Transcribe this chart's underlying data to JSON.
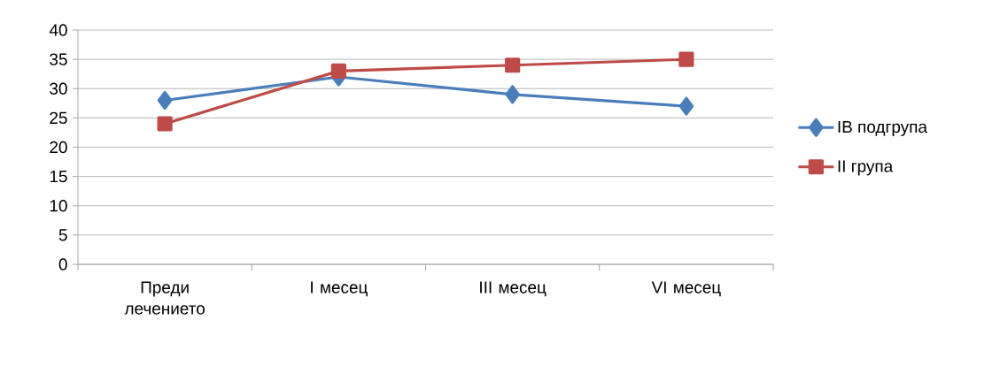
{
  "chart_data": {
    "type": "line",
    "categories": [
      "Преди лечението",
      "I месец",
      "III месец",
      "VI месец"
    ],
    "series": [
      {
        "name": "IB подгрупа",
        "color": "#4a7ebb",
        "marker": "diamond",
        "values": [
          28,
          32,
          29,
          27
        ]
      },
      {
        "name": "II група",
        "color": "#be4b48",
        "marker": "square",
        "values": [
          24,
          33,
          34,
          35
        ]
      }
    ],
    "ylim": [
      0,
      40
    ],
    "yticks": [
      0,
      5,
      10,
      15,
      20,
      25,
      30,
      35,
      40
    ],
    "grid": "y",
    "legend": "right",
    "line_style": "solid"
  }
}
